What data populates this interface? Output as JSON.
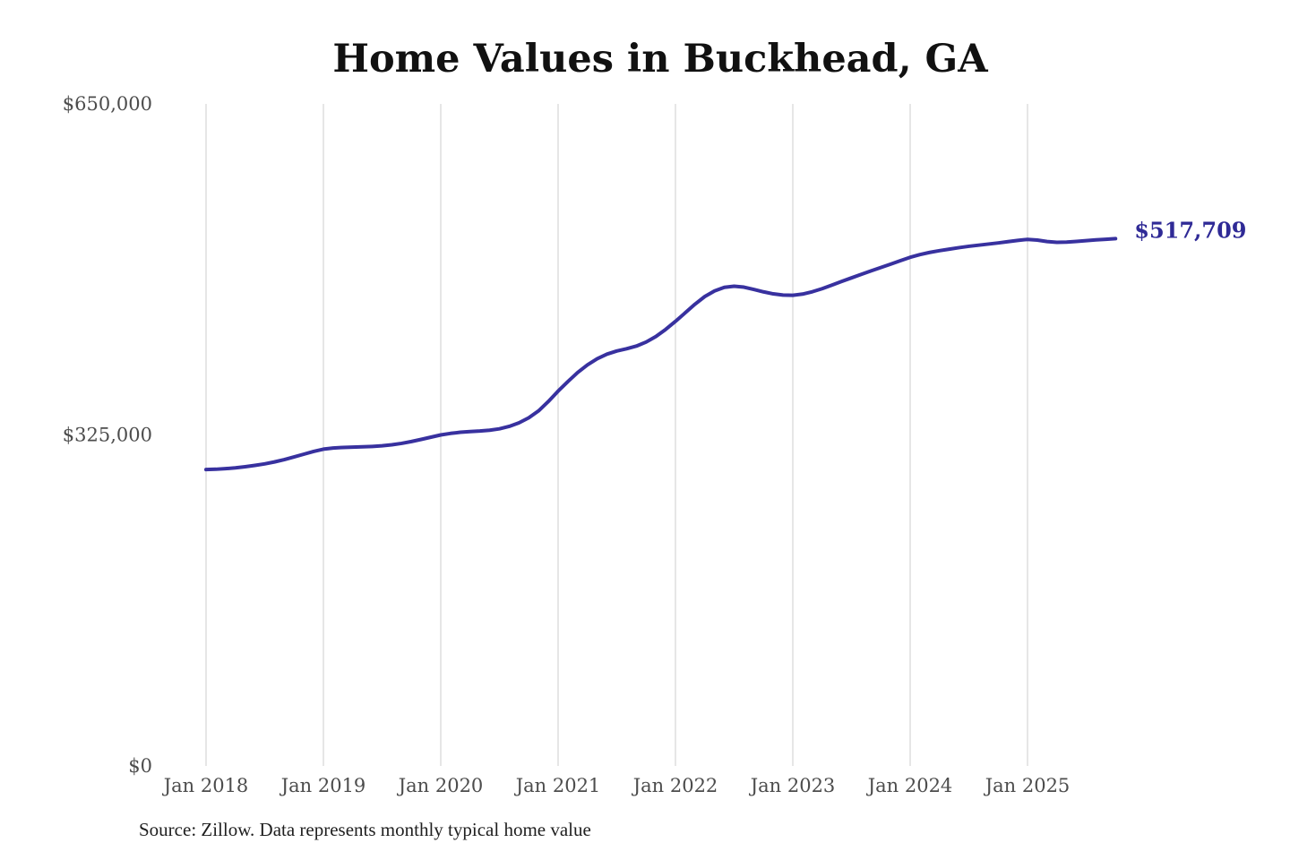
{
  "source_note": "Source: Zillow. Data represents monthly typical home value",
  "colors": {
    "background": "#ffffff",
    "line": "#38319f",
    "grid": "#cccccc",
    "axis_text": "#4c4c4c",
    "title_text": "#111111",
    "end_label_text": "#2f2a96",
    "source_text": "#1f1f1f"
  },
  "chart_data": {
    "type": "line",
    "title": "Home Values in Buckhead, GA",
    "xlabel": "",
    "ylabel": "",
    "grid": "vertical-only",
    "legend": "none",
    "ylim": [
      0,
      650000
    ],
    "x_ticks": [
      "Jan 2018",
      "Jan 2019",
      "Jan 2020",
      "Jan 2021",
      "Jan 2022",
      "Jan 2023",
      "Jan 2024",
      "Jan 2025"
    ],
    "y_ticks": [
      {
        "label": "$0",
        "value": 0
      },
      {
        "label": "$325,000",
        "value": 325000
      },
      {
        "label": "$650,000",
        "value": 650000
      }
    ],
    "x_range": {
      "start": "Jan 2018",
      "end": "Oct 2025",
      "interval": "monthly"
    },
    "end_label": {
      "text": "$517,709",
      "value": 517709
    },
    "series": [
      {
        "name": "Monthly typical home value",
        "values": [
          291000,
          291300,
          291900,
          292700,
          293800,
          295100,
          296600,
          298500,
          300800,
          303400,
          306100,
          308800,
          311000,
          312100,
          312700,
          313000,
          313300,
          313700,
          314300,
          315300,
          316700,
          318500,
          320600,
          322800,
          325000,
          326500,
          327600,
          328300,
          328800,
          329600,
          331000,
          333400,
          336900,
          341800,
          348600,
          357800,
          368000,
          377400,
          386300,
          393800,
          399800,
          404300,
          407400,
          409600,
          412200,
          416200,
          421600,
          428600,
          436500,
          444900,
          453400,
          460900,
          466400,
          469900,
          471000,
          470100,
          467900,
          465500,
          463500,
          462300,
          462100,
          463300,
          465600,
          468600,
          472100,
          475700,
          479200,
          482700,
          486100,
          489400,
          492700,
          496100,
          499400,
          502100,
          504200,
          505900,
          507400,
          508900,
          510200,
          511300,
          512400,
          513500,
          514800,
          516000,
          517000,
          516300,
          514900,
          514100,
          514300,
          515000,
          515800,
          516500,
          517100,
          517709
        ]
      }
    ]
  }
}
